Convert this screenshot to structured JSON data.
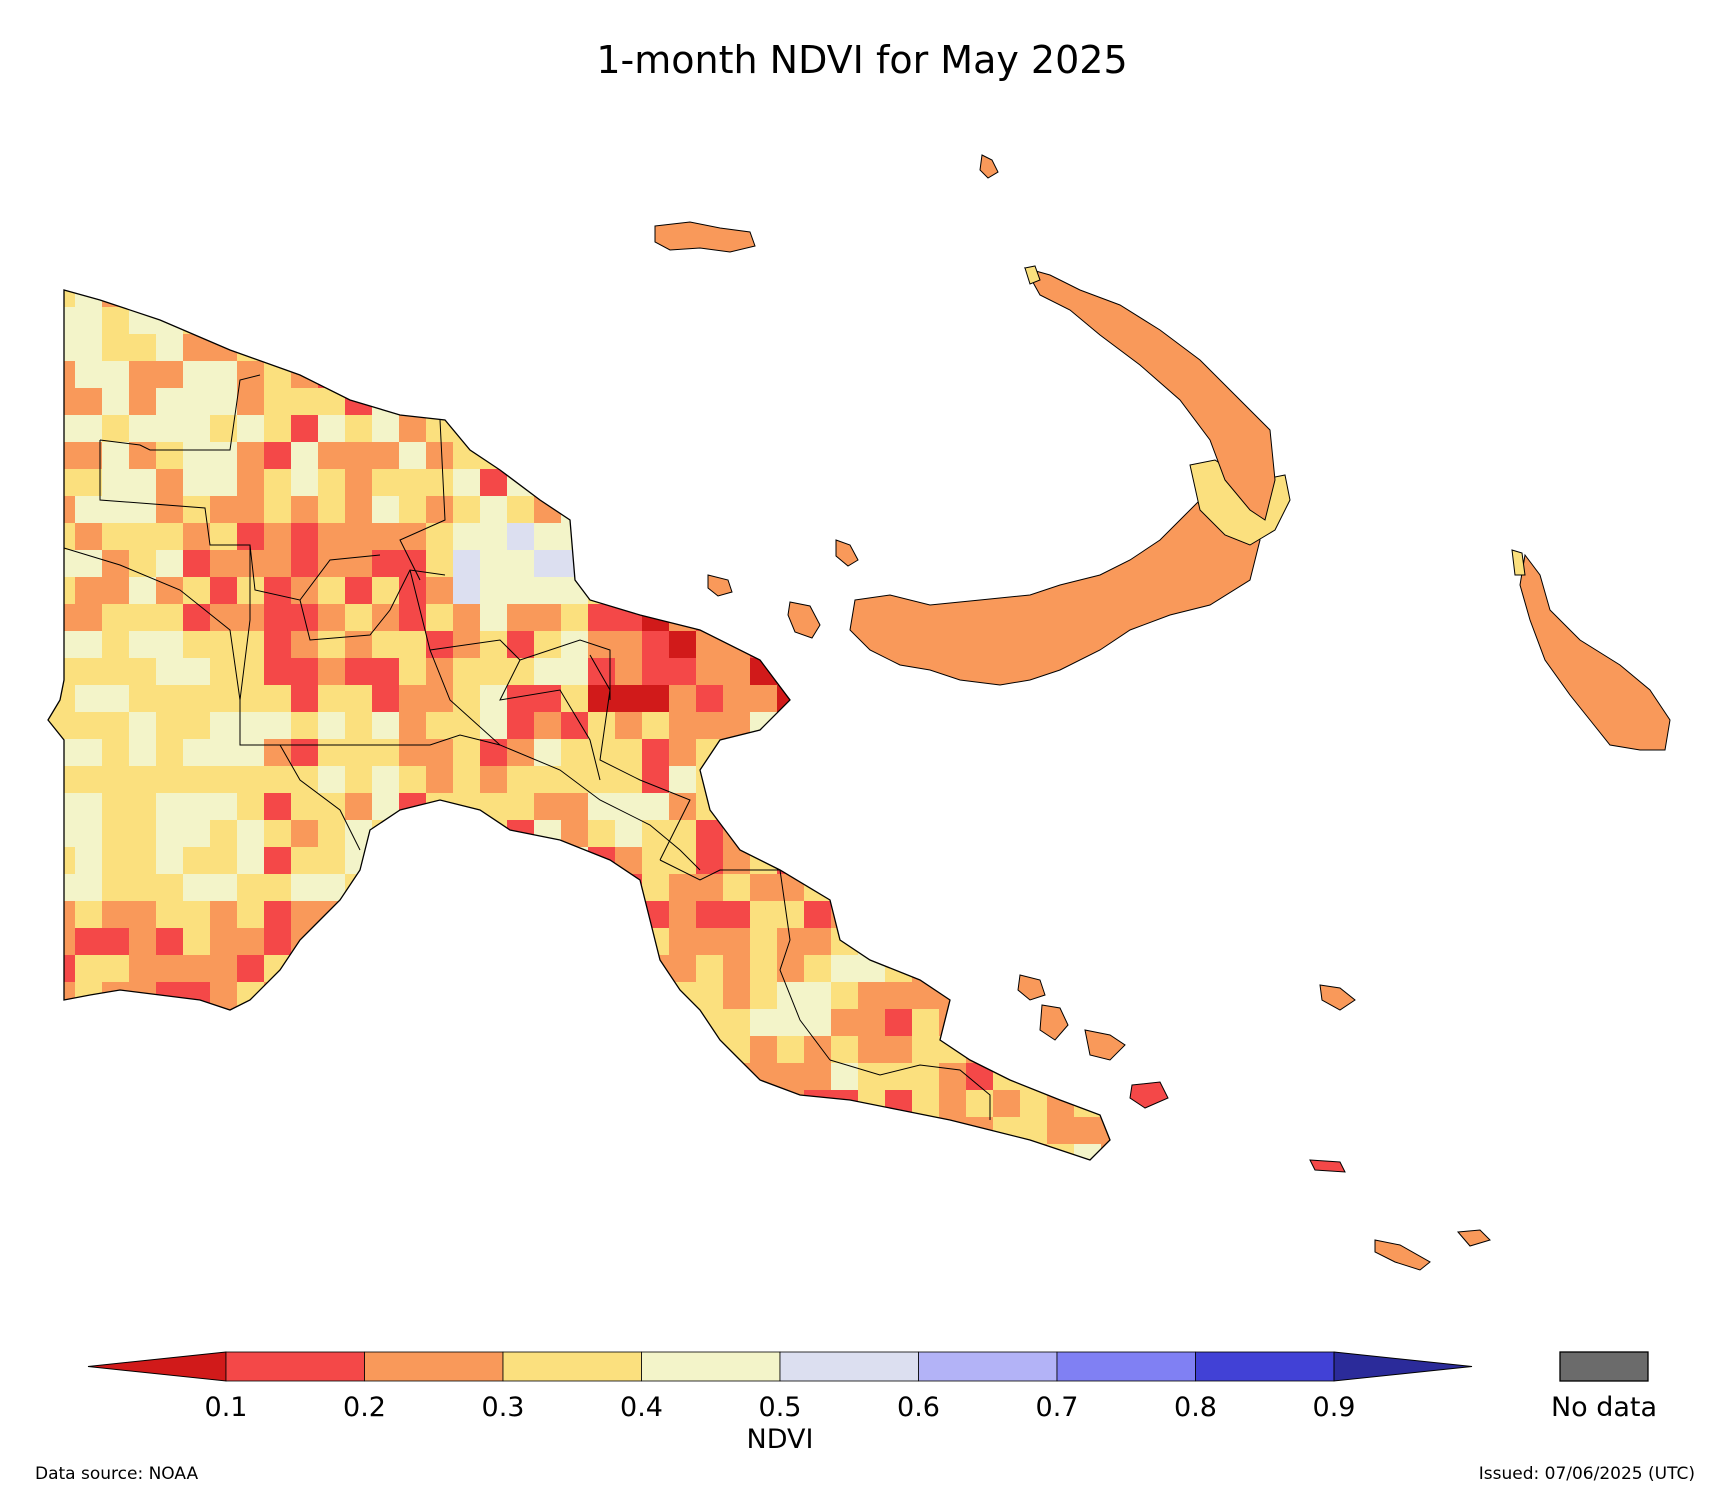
{
  "title": "1-month NDVI for May 2025",
  "colorbar": {
    "label": "NDVI",
    "ticks": [
      "0.1",
      "0.2",
      "0.3",
      "0.4",
      "0.5",
      "0.6",
      "0.7",
      "0.8",
      "0.9"
    ],
    "under_color": "#d11a1a",
    "over_color": "#2b2b9a",
    "bins": [
      {
        "range": "0.1-0.2",
        "color": "#f44848"
      },
      {
        "range": "0.2-0.3",
        "color": "#f9995a"
      },
      {
        "range": "0.3-0.4",
        "color": "#fbe07e"
      },
      {
        "range": "0.4-0.5",
        "color": "#f3f4c9"
      },
      {
        "range": "0.5-0.6",
        "color": "#dcdff0"
      },
      {
        "range": "0.6-0.7",
        "color": "#b3b3f7"
      },
      {
        "range": "0.7-0.8",
        "color": "#8080f3"
      },
      {
        "range": "0.8-0.9",
        "color": "#4141d6"
      }
    ]
  },
  "no_data": {
    "label": "No data",
    "color": "#6b6b6b"
  },
  "footer": {
    "source": "Data source: NOAA",
    "issued": "Issued: 07/06/2025 (UTC)"
  }
}
